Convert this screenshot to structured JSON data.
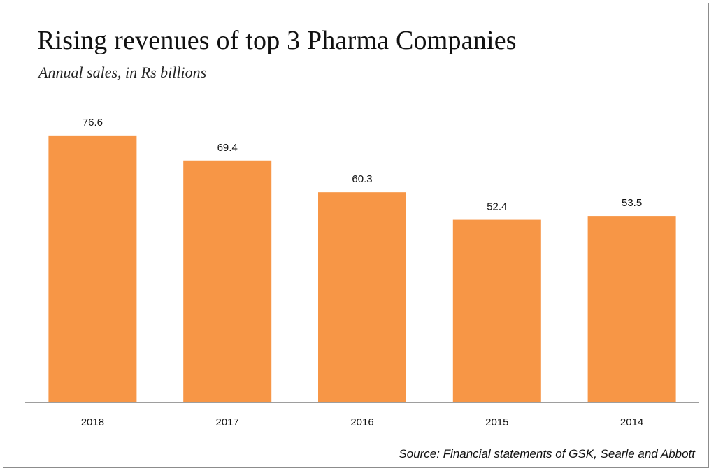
{
  "chart_data": {
    "type": "bar",
    "title": "Rising revenues of top 3 Pharma Companies",
    "subtitle": "Annual sales, in Rs billions",
    "categories": [
      "2018",
      "2017",
      "2016",
      "2015",
      "2014"
    ],
    "values": [
      76.6,
      69.4,
      60.3,
      52.4,
      53.5
    ],
    "value_labels": [
      "76.6",
      "69.4",
      "60.3",
      "52.4",
      "53.5"
    ],
    "xlabel": "",
    "ylabel": "",
    "ylim": [
      0,
      90
    ],
    "grid": false,
    "legend": "none",
    "bar_color": "#F79646",
    "source": "Source: Financial statements of GSK, Searle and Abbott"
  }
}
